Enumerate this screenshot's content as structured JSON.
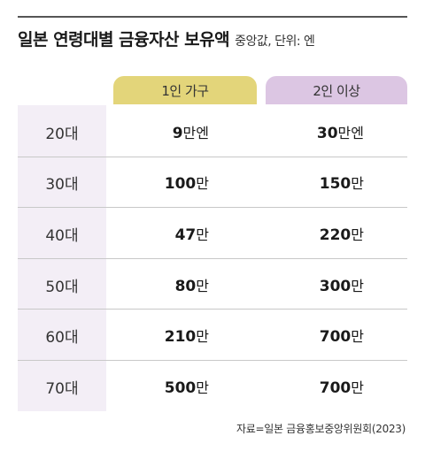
{
  "header": {
    "title": "일본 연령대별 금융자산 보유액",
    "subtitle": "중앙값, 단위: 엔"
  },
  "chart_data": {
    "type": "table",
    "title": "일본 연령대별 금융자산 보유액",
    "subtitle": "중앙값, 단위: 엔",
    "columns": [
      "1인 가구",
      "2인 이상"
    ],
    "rows": [
      {
        "age": "20대",
        "single": {
          "num": "9",
          "unit": "만엔"
        },
        "multi": {
          "num": "30",
          "unit": "만엔"
        }
      },
      {
        "age": "30대",
        "single": {
          "num": "100",
          "unit": "만"
        },
        "multi": {
          "num": "150",
          "unit": "만"
        }
      },
      {
        "age": "40대",
        "single": {
          "num": "47",
          "unit": "만"
        },
        "multi": {
          "num": "220",
          "unit": "만"
        }
      },
      {
        "age": "50대",
        "single": {
          "num": "80",
          "unit": "만"
        },
        "multi": {
          "num": "300",
          "unit": "만"
        }
      },
      {
        "age": "60대",
        "single": {
          "num": "210",
          "unit": "만"
        },
        "multi": {
          "num": "700",
          "unit": "만"
        }
      },
      {
        "age": "70대",
        "single": {
          "num": "500",
          "unit": "만"
        },
        "multi": {
          "num": "700",
          "unit": "만"
        }
      }
    ],
    "colors": {
      "single_header": "#e3d57a",
      "multi_header": "#dcc6e3",
      "age_column": "#f3eef6"
    }
  },
  "footer": {
    "source": "자료=일본 금융홍보중앙위원회(2023)"
  }
}
